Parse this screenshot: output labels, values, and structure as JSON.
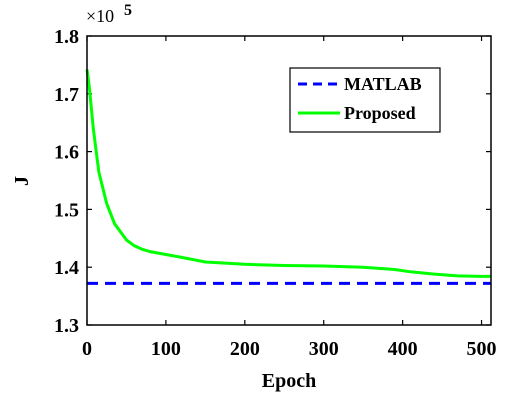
{
  "chart_data": {
    "type": "line",
    "xlabel": "Epoch",
    "ylabel": "J",
    "xlim": [
      0,
      512
    ],
    "ylim": [
      1.3,
      1.8
    ],
    "x_ticks": [
      0,
      100,
      200,
      300,
      400,
      500
    ],
    "x_tick_labels": [
      "0",
      "100",
      "200",
      "300",
      "400",
      "500"
    ],
    "y_ticks": [
      1.3,
      1.4,
      1.5,
      1.6,
      1.7,
      1.8
    ],
    "y_tick_labels": [
      "1.3",
      "1.4",
      "1.5",
      "1.6",
      "1.7",
      "1.8"
    ],
    "y_exponent_base": "×10",
    "y_exponent_power": "5",
    "grid": false,
    "legend_position": "top-right",
    "series": [
      {
        "name": "MATLAB",
        "color": "#0000ff",
        "style": "dashed",
        "x": [
          0,
          512
        ],
        "y": [
          1.372,
          1.372
        ]
      },
      {
        "name": "Proposed",
        "color": "#00ff00",
        "style": "solid",
        "x": [
          0,
          3,
          8,
          15,
          25,
          35,
          50,
          60,
          70,
          80,
          100,
          120,
          150,
          200,
          250,
          300,
          350,
          370,
          390,
          410,
          440,
          470,
          500,
          512
        ],
        "y": [
          1.742,
          1.71,
          1.64,
          1.565,
          1.51,
          1.475,
          1.447,
          1.437,
          1.431,
          1.427,
          1.422,
          1.417,
          1.409,
          1.405,
          1.403,
          1.402,
          1.4,
          1.398,
          1.396,
          1.392,
          1.388,
          1.385,
          1.384,
          1.384
        ]
      }
    ]
  }
}
